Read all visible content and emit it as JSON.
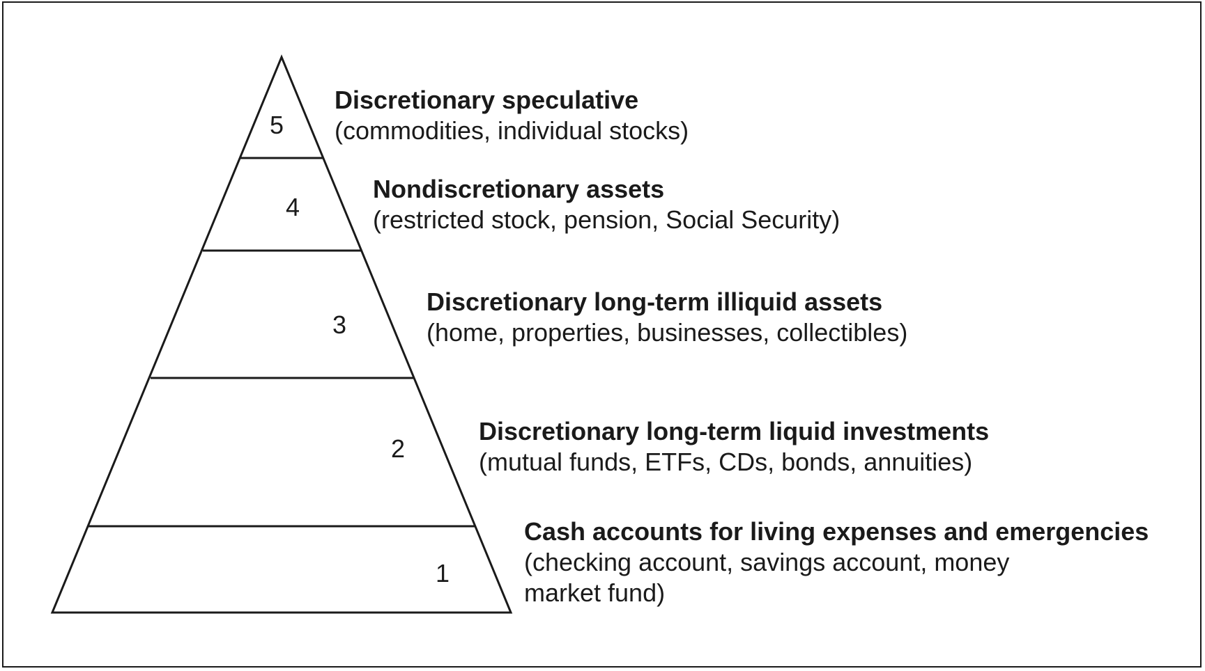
{
  "levels": [
    {
      "number": "5",
      "title": "Discretionary speculative",
      "description": "(commodities, individual stocks)"
    },
    {
      "number": "4",
      "title": "Nondiscretionary assets",
      "description": "(restricted stock, pension, Social Security)"
    },
    {
      "number": "3",
      "title": "Discretionary long-term illiquid assets",
      "description": "(home, properties, businesses, collectibles)"
    },
    {
      "number": "2",
      "title": "Discretionary long-term liquid investments",
      "description": "(mutual funds, ETFs, CDs, bonds, annuities)"
    },
    {
      "number": "1",
      "title": "Cash accounts for living expenses and emergencies",
      "description": "(checking account, savings account, money market fund)"
    }
  ]
}
